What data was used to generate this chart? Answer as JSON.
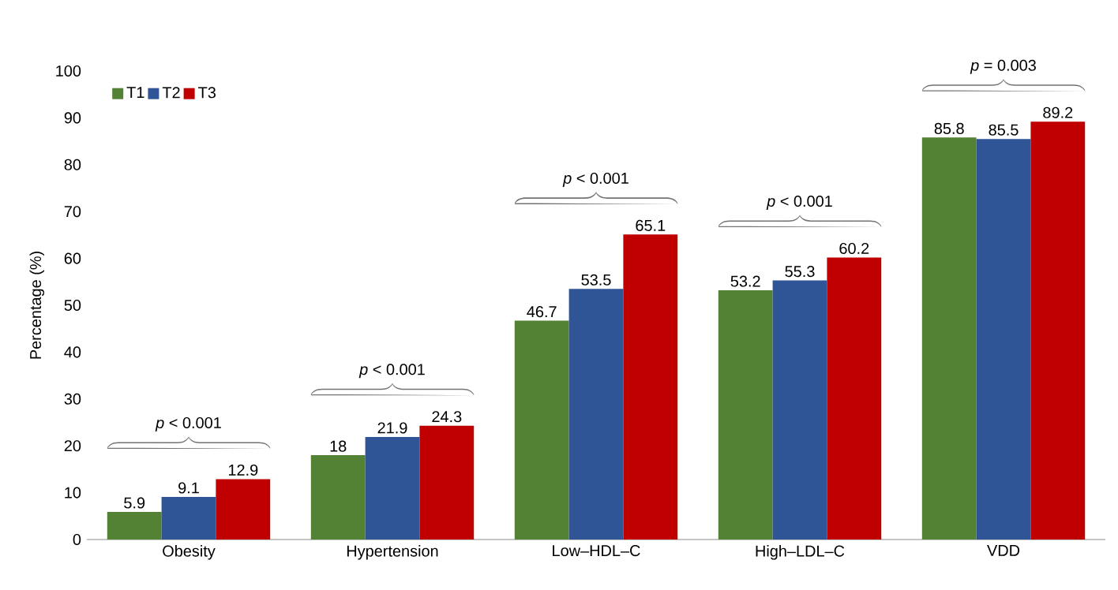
{
  "chart_data": {
    "type": "bar",
    "ylabel": "Percentage (%)",
    "categories": [
      "Obesity",
      "Hypertension",
      "Low–HDL–C",
      "High–LDL–C",
      "VDD"
    ],
    "series": [
      {
        "name": "T1",
        "color": "#548235",
        "values": [
          5.9,
          18,
          46.7,
          53.2,
          85.8
        ]
      },
      {
        "name": "T2",
        "color": "#2f5597",
        "values": [
          9.1,
          21.9,
          53.5,
          55.3,
          85.5
        ]
      },
      {
        "name": "T3",
        "color": "#c00000",
        "values": [
          12.9,
          24.3,
          65.1,
          60.2,
          89.2
        ]
      }
    ],
    "ylim": [
      0,
      100
    ],
    "yticks": [
      0,
      10,
      20,
      30,
      40,
      50,
      60,
      70,
      80,
      90,
      100
    ],
    "data_labels": true,
    "grid": false,
    "legend": "top left",
    "annotations": [
      "*p* < 0.001",
      "*p* < 0.001",
      "*p* < 0.001",
      "*p* < 0.001",
      "*p* = 0.003"
    ]
  }
}
